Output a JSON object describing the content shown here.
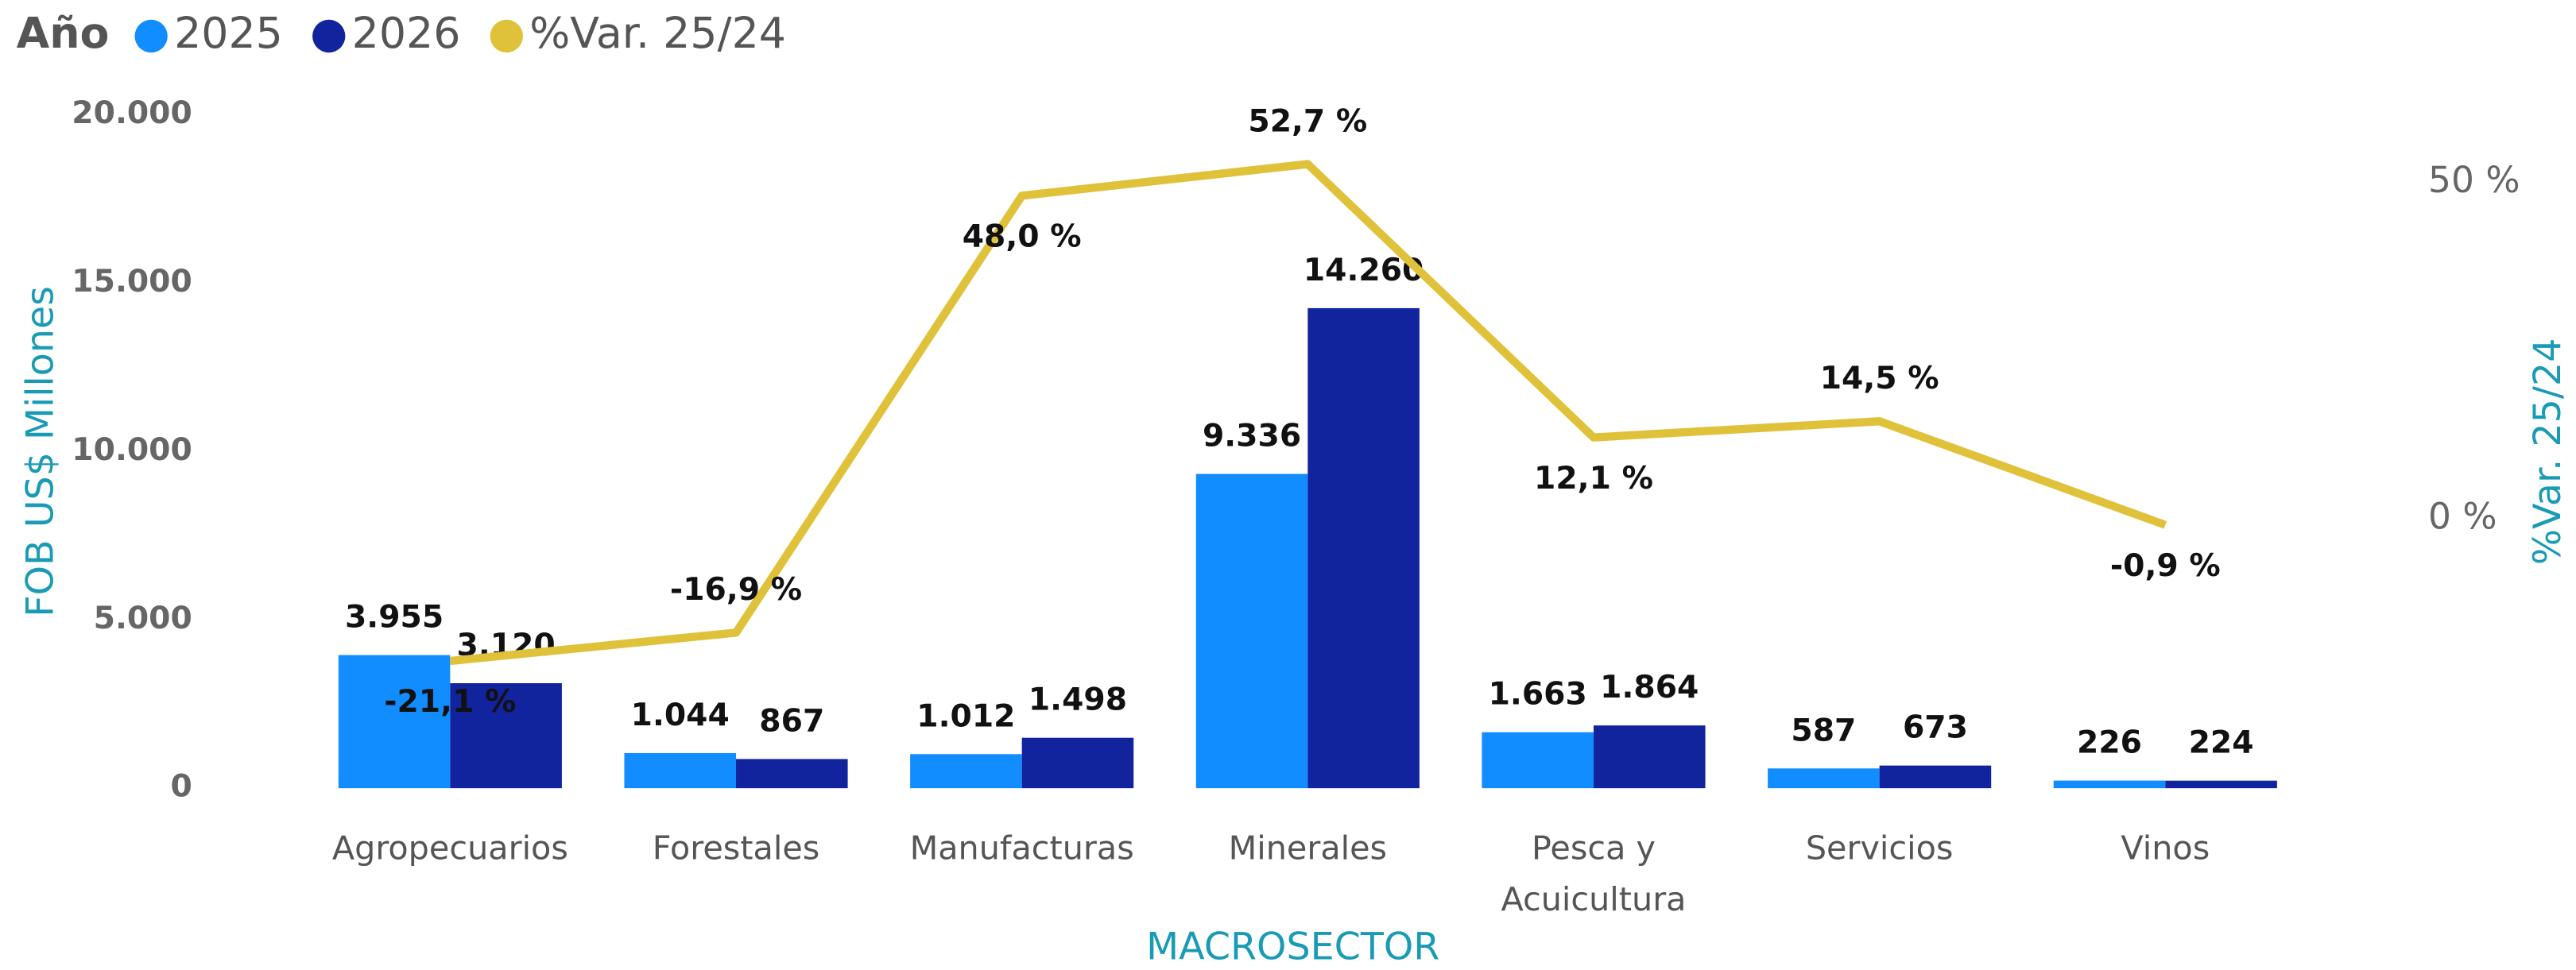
{
  "chart_data": {
    "type": "bar-line",
    "legend_title": "Año",
    "x_label": "MACROSECTOR",
    "y_label": "FOB US$ Millones",
    "y2_label": "%Var. 25/24",
    "categories": [
      "Agropecuarios",
      "Forestales",
      "Manufacturas",
      "Minerales",
      "Pesca y Acuicultura",
      "Servicios",
      "Vinos"
    ],
    "series": [
      {
        "name": "2025",
        "color": "#118dff",
        "type": "bar",
        "values": [
          3955,
          1044,
          1012,
          9336,
          1663,
          587,
          226
        ],
        "value_labels": [
          "3.955",
          "1.044",
          "1.012",
          "9.336",
          "1.663",
          "587",
          "226"
        ]
      },
      {
        "name": "2026",
        "color": "#12239e",
        "type": "bar",
        "values": [
          3120,
          867,
          1498,
          14260,
          1864,
          673,
          224
        ],
        "value_labels": [
          "3.120",
          "867",
          "1.498",
          "14.260",
          "1.864",
          "673",
          "224"
        ]
      },
      {
        "name": "%Var. 25/24",
        "color": "#e0c23a",
        "type": "line",
        "axis": "y2",
        "values": [
          -21.1,
          -16.9,
          48.0,
          52.7,
          12.1,
          14.5,
          -0.9
        ],
        "value_labels": [
          "-21,1 %",
          "-16,9 %",
          "48,0 %",
          "52,7 %",
          "12,1 %",
          "14,5 %",
          "-0,9 %"
        ]
      }
    ],
    "ylim": [
      0,
      20000
    ],
    "yticks": [
      {
        "value": 0,
        "label": "0"
      },
      {
        "value": 5000,
        "label": "5.000"
      },
      {
        "value": 10000,
        "label": "10.000"
      },
      {
        "value": 15000,
        "label": "15.000"
      },
      {
        "value": 20000,
        "label": "20.000"
      }
    ],
    "y2lim": [
      -40,
      60
    ],
    "y2ticks": [
      {
        "value": 0,
        "label": "0 %"
      },
      {
        "value": 50,
        "label": "50 %"
      }
    ],
    "legend": "top-left"
  }
}
